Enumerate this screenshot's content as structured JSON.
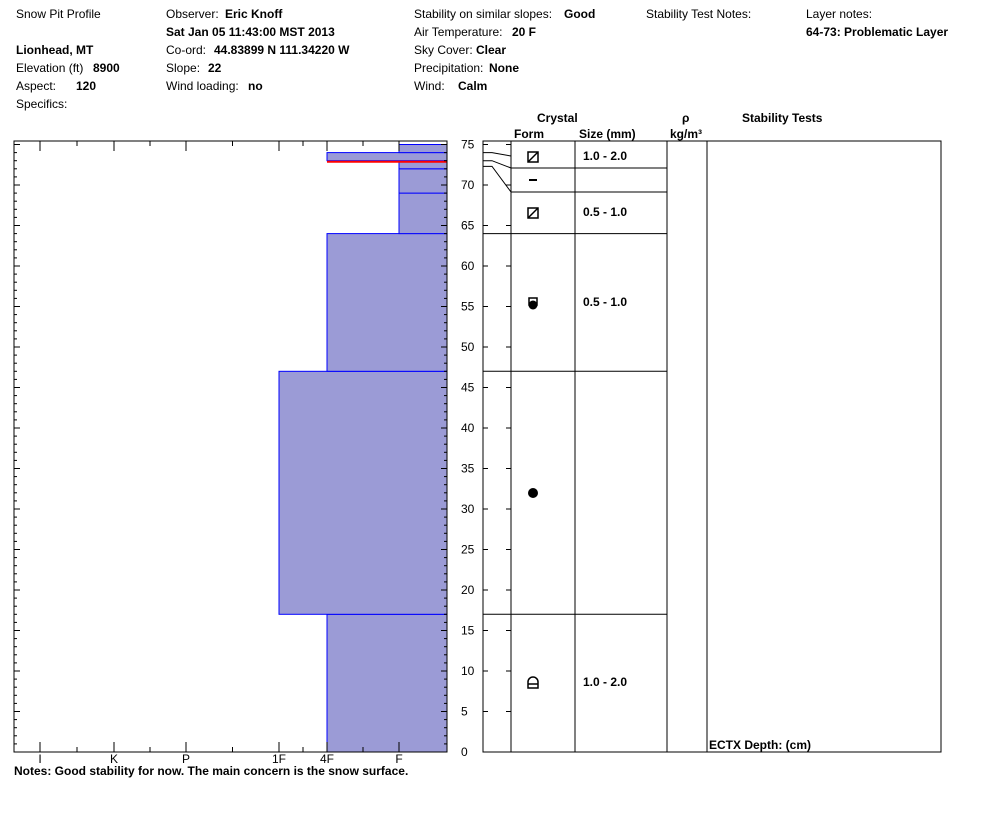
{
  "header": {
    "title": "Snow Pit Profile",
    "location": "Lionhead, MT",
    "elevation_label": "Elevation (ft)",
    "elevation": "8900",
    "aspect_label": "Aspect:",
    "aspect": "120",
    "specifics_label": "Specifics:",
    "observer_label": "Observer:",
    "observer": "Eric Knoff",
    "datetime": "Sat Jan 05 11:43:00 MST 2013",
    "coord_label": "Co-ord:",
    "coord": "44.83899 N 111.34220 W",
    "slope_label": "Slope:",
    "slope": "22",
    "wind_loading_label": "Wind loading:",
    "wind_loading": "no",
    "stability_label": "Stability on similar slopes:",
    "stability": "Good",
    "air_temp_label": "Air Temperature:",
    "air_temp": "20 F",
    "sky_label": "Sky Cover:",
    "sky": "Clear",
    "precip_label": "Precipitation:",
    "precip": "None",
    "wind_label": "Wind:",
    "wind": "Calm",
    "stability_notes_label": "Stability Test Notes:",
    "layer_notes_label": "Layer notes:",
    "layer_note": "64-73: Problematic Layer"
  },
  "table_headers": {
    "crystal": "Crystal",
    "form": "Form",
    "size": "Size (mm)",
    "rho": "ρ",
    "density_unit": "kg/m³",
    "stability_tests": "Stability Tests"
  },
  "ectx": "ECTX   Depth: (cm)",
  "notes": "Notes:  Good stability for now.  The main concern is the snow surface.",
  "colors": {
    "hardness_fill": "#9b9bd6",
    "hardness_edge": "#0000ff",
    "problem_line": "#ff0000"
  },
  "chart_data": {
    "type": "bar",
    "orientation": "horizontal-step",
    "title": "Snow Pit Profile",
    "hardness_ticks": [
      "I",
      "K",
      "P",
      "1F",
      "4F",
      "F"
    ],
    "height_ticks": [
      0,
      5,
      10,
      15,
      20,
      25,
      30,
      35,
      40,
      45,
      50,
      55,
      60,
      65,
      70,
      75
    ],
    "ylim": [
      0,
      75
    ],
    "layers": [
      {
        "bottom": 0,
        "top": 17,
        "hardness": "4F",
        "form": "depth-hoar-icon",
        "size": "1.0 - 2.0"
      },
      {
        "bottom": 17,
        "top": 47,
        "hardness": "1F",
        "form": "rounded-icon",
        "size": ""
      },
      {
        "bottom": 47,
        "top": 64,
        "hardness": "4F",
        "form": "mixed-rounded-faceted-icon",
        "size": "0.5 - 1.0"
      },
      {
        "bottom": 64,
        "top": 69,
        "hardness": "F",
        "form": "faceted-icon",
        "size": "0.5 - 1.0"
      },
      {
        "bottom": 69,
        "top": 72,
        "hardness": "F",
        "form": "surface-hoar-icon",
        "size": ""
      },
      {
        "bottom": 72,
        "top": 73,
        "hardness": "F",
        "form": "faceted-icon",
        "size": "1.0 - 2.0"
      },
      {
        "bottom": 73,
        "top": 74,
        "hardness": "4F",
        "form": "",
        "size": ""
      },
      {
        "bottom": 74,
        "top": 75,
        "hardness": "F",
        "form": "",
        "size": ""
      }
    ],
    "problem_layer_height": 73,
    "crystal_rows": [
      {
        "bottom": 69,
        "top": 75,
        "form": "faceted-icon",
        "size": "1.0 - 2.0"
      },
      {
        "bottom": 64,
        "top": 69,
        "form": "faceted-icon",
        "size": "0.5 - 1.0"
      },
      {
        "bottom": 47,
        "top": 64,
        "form": "mixed-rounded-faceted-icon",
        "size": "0.5 - 1.0"
      },
      {
        "bottom": 17,
        "top": 47,
        "form": "rounded-icon",
        "size": ""
      },
      {
        "bottom": 0,
        "top": 17,
        "form": "depth-hoar-icon",
        "size": "1.0 - 2.0"
      }
    ]
  }
}
